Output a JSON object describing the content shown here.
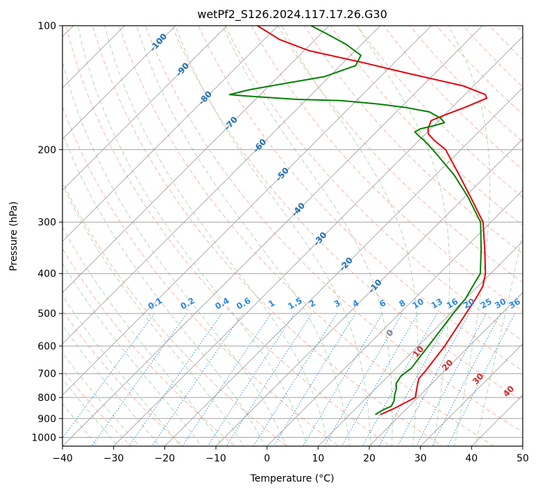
{
  "chart_data": {
    "type": "line",
    "chart_kind": "skew-t log-p",
    "title": "wetPf2_S126.2024.117.17.26.G30",
    "xlabel": "Temperature (°C)",
    "ylabel": "Pressure (hPa)",
    "xlim": [
      -40,
      50
    ],
    "ylim": [
      1050,
      100
    ],
    "y_scale": "log",
    "grid": true,
    "x_ticks": [
      -40,
      -30,
      -20,
      -10,
      0,
      10,
      20,
      30,
      40,
      50
    ],
    "y_ticks": [
      100,
      200,
      300,
      400,
      500,
      600,
      700,
      800,
      900,
      1000
    ],
    "series": [
      {
        "color": "#e8000b",
        "points": [
          {
            "p": 880,
            "t": 16.0
          },
          {
            "p": 850,
            "t": 17.5
          },
          {
            "p": 800,
            "t": 19.5
          },
          {
            "p": 760,
            "t": 18.0
          },
          {
            "p": 720,
            "t": 16.5
          },
          {
            "p": 690,
            "t": 16.3
          },
          {
            "p": 600,
            "t": 15.2
          },
          {
            "p": 500,
            "t": 13.0
          },
          {
            "p": 460,
            "t": 12.0
          },
          {
            "p": 430,
            "t": 11.0
          },
          {
            "p": 400,
            "t": 9.0
          },
          {
            "p": 350,
            "t": 4.2
          },
          {
            "p": 300,
            "t": -1.5
          },
          {
            "p": 260,
            "t": -9.0
          },
          {
            "p": 230,
            "t": -15.5
          },
          {
            "p": 200,
            "t": -23.0
          },
          {
            "p": 190,
            "t": -27.0
          },
          {
            "p": 183,
            "t": -29.5
          },
          {
            "p": 178,
            "t": -30.5
          },
          {
            "p": 174,
            "t": -31.0
          },
          {
            "p": 170,
            "t": -31.5
          },
          {
            "p": 165,
            "t": -30.0
          },
          {
            "p": 158,
            "t": -27.5
          },
          {
            "p": 150,
            "t": -25.0
          },
          {
            "p": 147,
            "t": -26.0
          },
          {
            "p": 140,
            "t": -32.0
          },
          {
            "p": 130,
            "t": -46.0
          },
          {
            "p": 123,
            "t": -56.0
          },
          {
            "p": 115,
            "t": -69.0
          },
          {
            "p": 108,
            "t": -77.0
          },
          {
            "p": 100,
            "t": -84.0
          }
        ]
      },
      {
        "color": "#008000",
        "points": [
          {
            "p": 880,
            "t": 15.0
          },
          {
            "p": 860,
            "t": 15.5
          },
          {
            "p": 840,
            "t": 16.5
          },
          {
            "p": 815,
            "t": 16.0
          },
          {
            "p": 790,
            "t": 15.0
          },
          {
            "p": 760,
            "t": 14.0
          },
          {
            "p": 740,
            "t": 13.0
          },
          {
            "p": 710,
            "t": 12.5
          },
          {
            "p": 680,
            "t": 13.0
          },
          {
            "p": 640,
            "t": 12.5
          },
          {
            "p": 600,
            "t": 12.0
          },
          {
            "p": 500,
            "t": 10.5
          },
          {
            "p": 460,
            "t": 10.0
          },
          {
            "p": 430,
            "t": 9.0
          },
          {
            "p": 400,
            "t": 8.0
          },
          {
            "p": 350,
            "t": 3.5
          },
          {
            "p": 300,
            "t": -2.0
          },
          {
            "p": 260,
            "t": -9.5
          },
          {
            "p": 230,
            "t": -16.5
          },
          {
            "p": 200,
            "t": -25.5
          },
          {
            "p": 190,
            "t": -29.0
          },
          {
            "p": 185,
            "t": -31.0
          },
          {
            "p": 181,
            "t": -32.5
          },
          {
            "p": 178,
            "t": -32.0
          },
          {
            "p": 175,
            "t": -30.0
          },
          {
            "p": 172,
            "t": -28.5
          },
          {
            "p": 168,
            "t": -30.0
          },
          {
            "p": 162,
            "t": -33.5
          },
          {
            "p": 158,
            "t": -39.0
          },
          {
            "p": 155,
            "t": -45.0
          },
          {
            "p": 152,
            "t": -53.0
          },
          {
            "p": 151,
            "t": -62.0
          },
          {
            "p": 148,
            "t": -73.0
          },
          {
            "p": 147,
            "t": -76.0
          },
          {
            "p": 143,
            "t": -73.0
          },
          {
            "p": 137,
            "t": -66.0
          },
          {
            "p": 133,
            "t": -61.0
          },
          {
            "p": 125,
            "t": -57.0
          },
          {
            "p": 118,
            "t": -58.0
          },
          {
            "p": 111,
            "t": -63.0
          },
          {
            "p": 105,
            "t": -68.5
          },
          {
            "p": 100,
            "t": -73.5
          }
        ]
      }
    ],
    "dry_adiabat_labels": [
      "-100",
      "-90",
      "-80",
      "-70",
      "-60",
      "-50",
      "-40",
      "-30",
      "-20",
      "-10"
    ],
    "dry_adiabat_label_temps": [
      -100,
      -90,
      -80,
      -70,
      -60,
      -50,
      -40,
      -30,
      -20,
      -10
    ],
    "moist_adiabat_labels": [
      "0",
      "10",
      "20",
      "30",
      "40"
    ],
    "mixing_ratio_labels": [
      "0.1",
      "0.2",
      "0.4",
      "0.6",
      "1",
      "1.5",
      "2",
      "3",
      "4",
      "6",
      "8",
      "10",
      "13",
      "16",
      "20",
      "25",
      "30",
      "36"
    ],
    "mixing_ratio_values": [
      0.1,
      0.2,
      0.4,
      0.6,
      1,
      1.5,
      2,
      3,
      4,
      6,
      8,
      10,
      13,
      16,
      20,
      25,
      30,
      36
    ],
    "colors": {
      "isobar": "#a0a0a0",
      "isotherm": "#9a9a9a",
      "dry_adiabat": "#f7a48a",
      "moist_adiabat": "#9fd09f",
      "mixing_ratio": "#2e8ae6",
      "dry_label": "#1f6fb2",
      "moist_label": "#d62728"
    }
  }
}
